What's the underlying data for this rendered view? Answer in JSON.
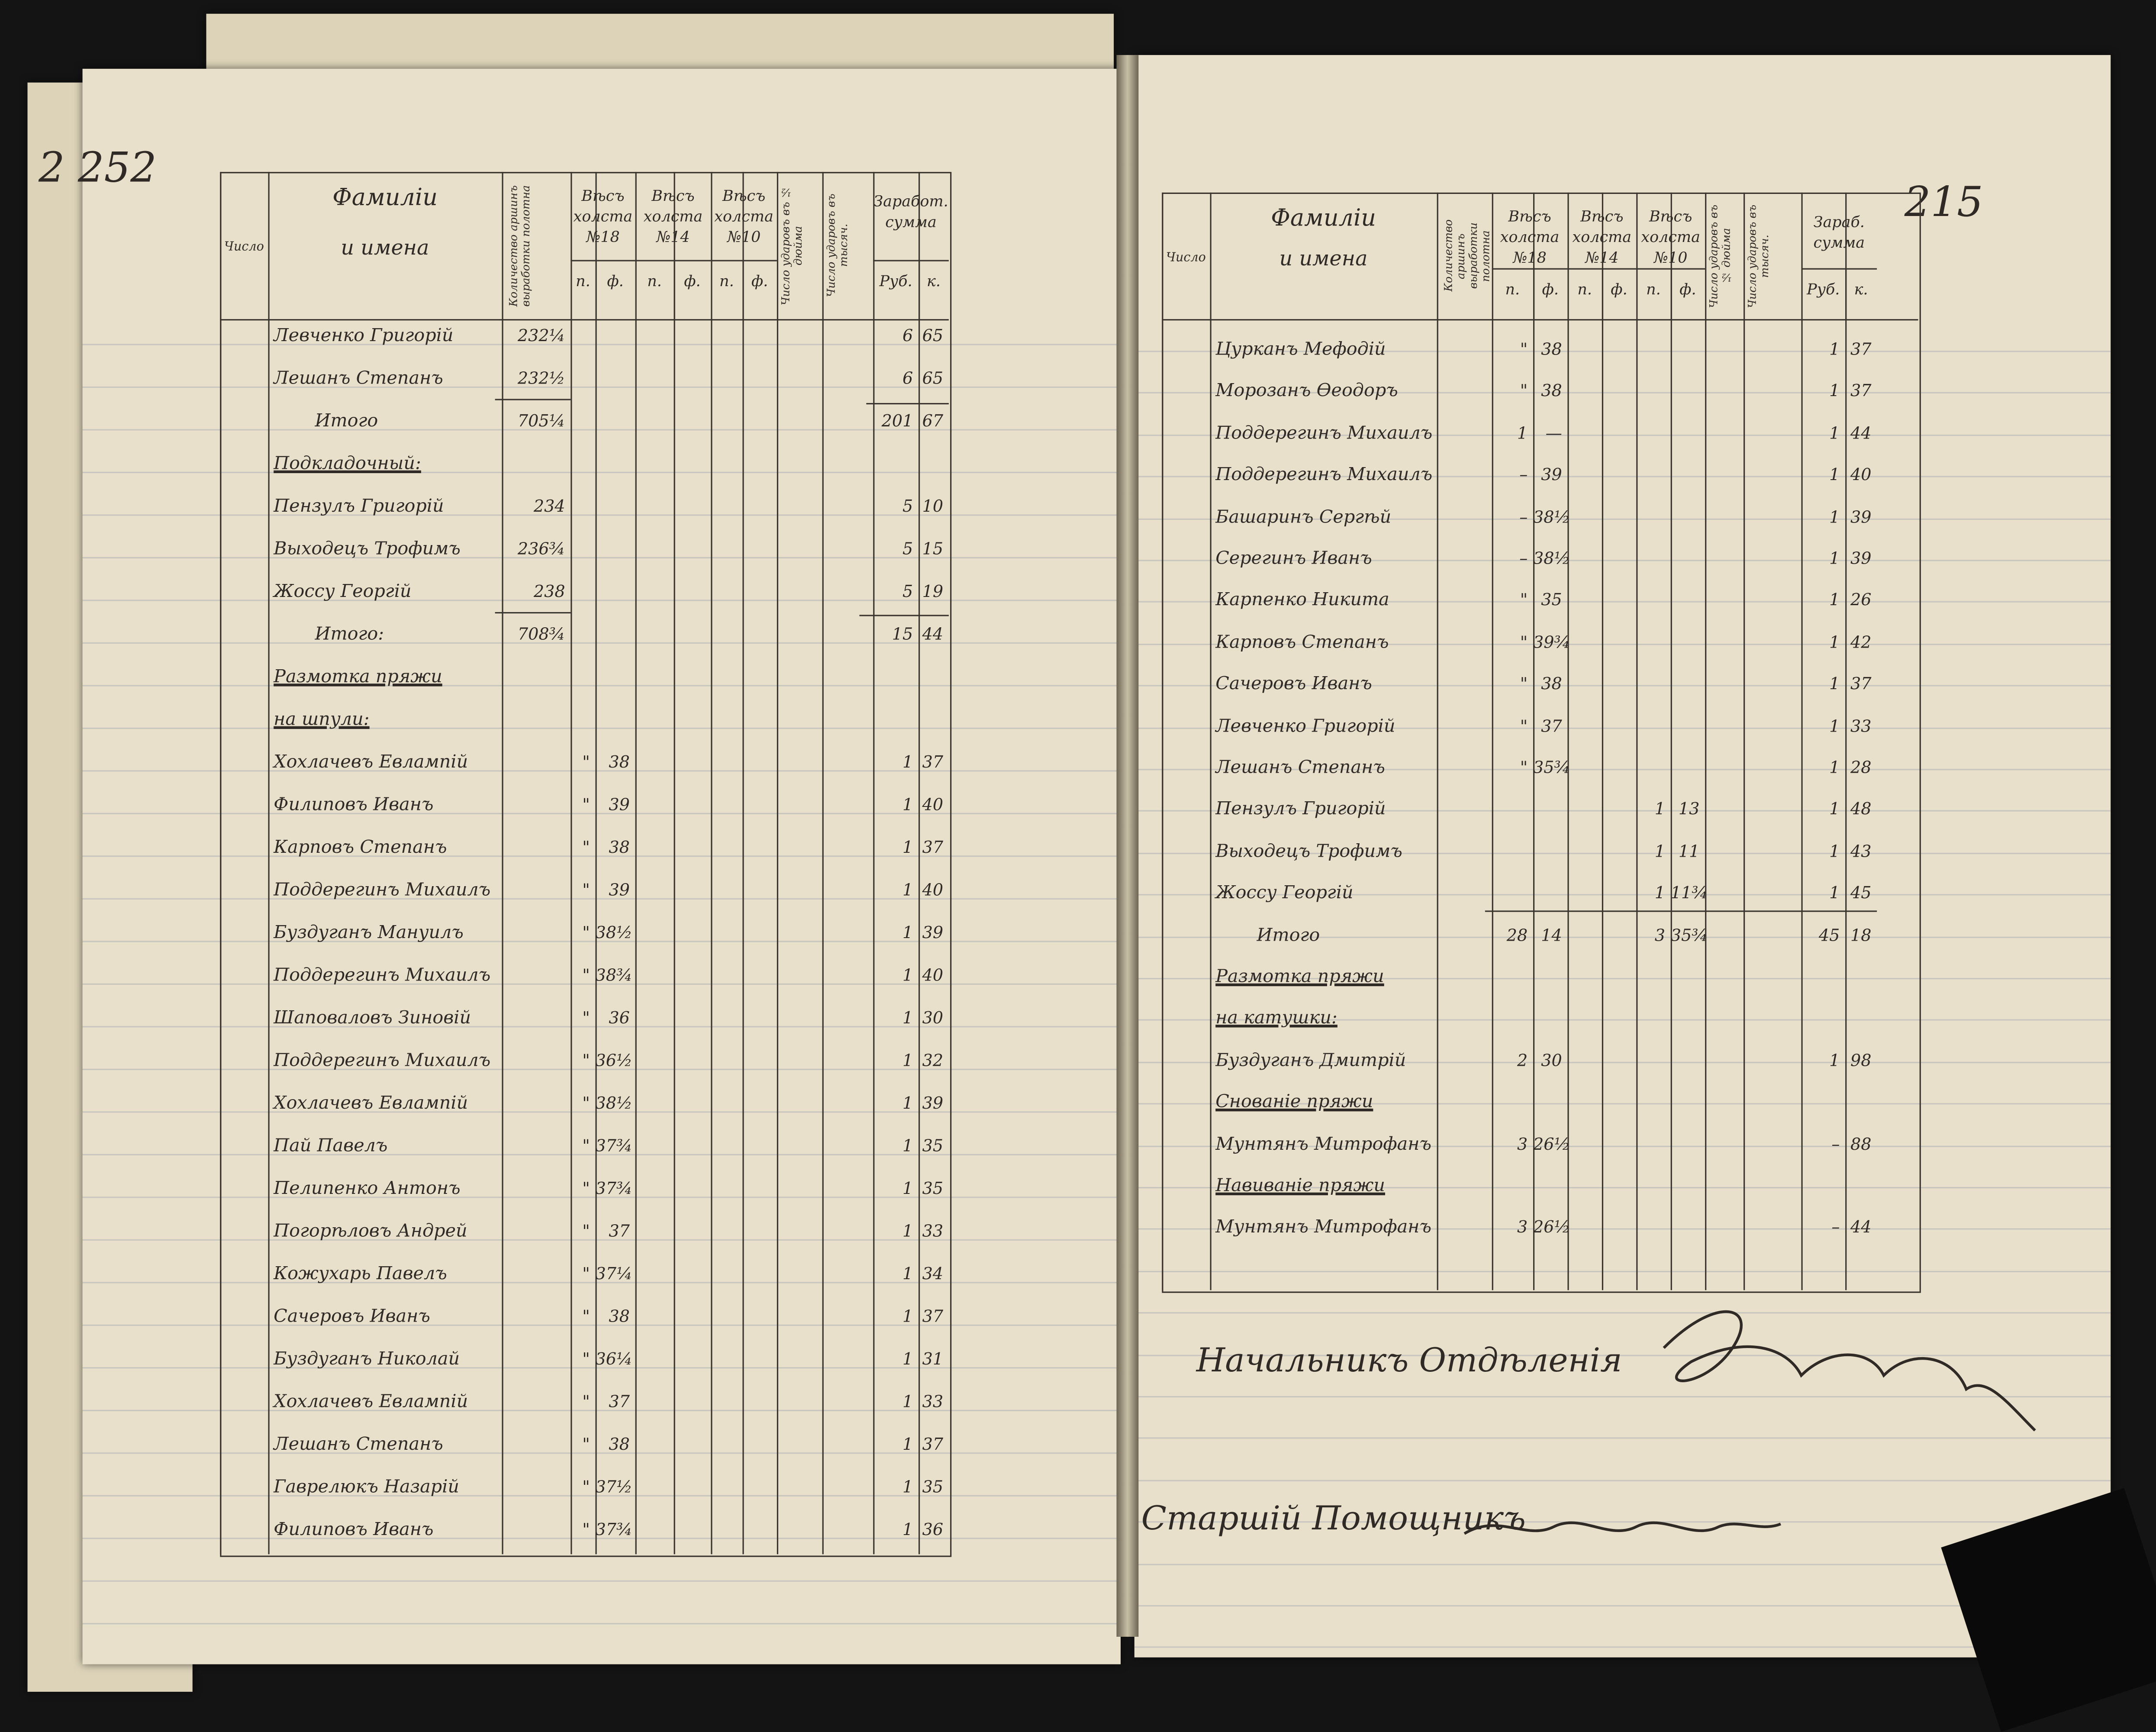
{
  "folio_left": "2 252",
  "folio_right": "215",
  "columns": {
    "number": "Число",
    "name_line1": "Фамилiи",
    "name_line2": "и имена",
    "arshin": "Количество аршинъ выработки полотна",
    "weight18": "Вѣсъ холста №18",
    "weight14": "Вѣсъ холста №14",
    "weight10": "Вѣсъ холста №10",
    "sub_p": "п.",
    "sub_f": "ф.",
    "strikes_half_inch": "Число ударовъ въ ½ дюйма",
    "strikes_thousand": "Число ударовъ въ тысяч.",
    "earnings": "Заработ. сумма",
    "earnings_right": "Зараб. сумма",
    "rub": "Руб.",
    "kop": "к."
  },
  "left_rows": [
    {
      "name": "Левченко Григорiй",
      "arsh": "232¼",
      "rub": "6",
      "kop": "65"
    },
    {
      "name": "Лешанъ Степанъ",
      "arsh": "232½",
      "rub": "6",
      "kop": "65"
    },
    {
      "name": "Итого",
      "arsh": "705¼",
      "rub": "201",
      "kop": "67",
      "kind": "total"
    },
    {
      "name": "Подкладочный:",
      "kind": "heading"
    },
    {
      "name": "Пензулъ Григорiй",
      "arsh": "234",
      "rub": "5",
      "kop": "10"
    },
    {
      "name": "Выходецъ Трофимъ",
      "arsh": "236¾",
      "rub": "5",
      "kop": "15"
    },
    {
      "name": "Жоссу Георгiй",
      "arsh": "238",
      "rub": "5",
      "kop": "19"
    },
    {
      "name": "Итого:",
      "arsh": "708¾",
      "rub": "15",
      "kop": "44",
      "kind": "total"
    },
    {
      "name": "Размотка пряжи",
      "kind": "heading"
    },
    {
      "name": "на шпули:",
      "kind": "heading"
    },
    {
      "name": "Хохлачевъ Евлампiй",
      "p18": "\"",
      "f18": "38",
      "rub": "1",
      "kop": "37"
    },
    {
      "name": "Филиповъ Иванъ",
      "p18": "\"",
      "f18": "39",
      "rub": "1",
      "kop": "40"
    },
    {
      "name": "Карповъ Степанъ",
      "p18": "\"",
      "f18": "38",
      "rub": "1",
      "kop": "37"
    },
    {
      "name": "Поддерегинъ Михаилъ",
      "p18": "\"",
      "f18": "39",
      "rub": "1",
      "kop": "40"
    },
    {
      "name": "Буздуганъ Мануилъ",
      "p18": "\"",
      "f18": "38½",
      "rub": "1",
      "kop": "39"
    },
    {
      "name": "Поддерегинъ Михаилъ",
      "p18": "\"",
      "f18": "38¾",
      "rub": "1",
      "kop": "40"
    },
    {
      "name": "Шаповаловъ Зиновiй",
      "p18": "\"",
      "f18": "36",
      "rub": "1",
      "kop": "30"
    },
    {
      "name": "Поддерегинъ Михаилъ",
      "p18": "\"",
      "f18": "36½",
      "rub": "1",
      "kop": "32"
    },
    {
      "name": "Хохлачевъ Евлампiй",
      "p18": "\"",
      "f18": "38½",
      "rub": "1",
      "kop": "39"
    },
    {
      "name": "Пай Павелъ",
      "p18": "\"",
      "f18": "37¾",
      "rub": "1",
      "kop": "35"
    },
    {
      "name": "Пелипенко Антонъ",
      "p18": "\"",
      "f18": "37¾",
      "rub": "1",
      "kop": "35"
    },
    {
      "name": "Погорѣловъ Андрей",
      "p18": "\"",
      "f18": "37",
      "rub": "1",
      "kop": "33"
    },
    {
      "name": "Кожухарь Павелъ",
      "p18": "\"",
      "f18": "37¼",
      "rub": "1",
      "kop": "34"
    },
    {
      "name": "Сачеровъ Иванъ",
      "p18": "\"",
      "f18": "38",
      "rub": "1",
      "kop": "37"
    },
    {
      "name": "Буздуганъ Николай",
      "p18": "\"",
      "f18": "36¼",
      "rub": "1",
      "kop": "31"
    },
    {
      "name": "Хохлачевъ Евлампiй",
      "p18": "\"",
      "f18": "37",
      "rub": "1",
      "kop": "33"
    },
    {
      "name": "Лешанъ Степанъ",
      "p18": "\"",
      "f18": "38",
      "rub": "1",
      "kop": "37"
    },
    {
      "name": "Гаврелюкъ Назарiй",
      "p18": "\"",
      "f18": "37½",
      "rub": "1",
      "kop": "35"
    },
    {
      "name": "Филиповъ Иванъ",
      "p18": "\"",
      "f18": "37¾",
      "rub": "1",
      "kop": "36"
    }
  ],
  "right_rows": [
    {
      "name": "Цурканъ Мефодiй",
      "p18": "\"",
      "f18": "38",
      "rub": "1",
      "kop": "37"
    },
    {
      "name": "Морозанъ Өеодоръ",
      "p18": "\"",
      "f18": "38",
      "rub": "1",
      "kop": "37"
    },
    {
      "name": "Поддерегинъ Михаилъ",
      "p18": "1",
      "f18": "—",
      "rub": "1",
      "kop": "44"
    },
    {
      "name": "Поддерегинъ Михаилъ",
      "p18": "–",
      "f18": "39",
      "rub": "1",
      "kop": "40"
    },
    {
      "name": "Башаринъ Сергѣй",
      "p18": "–",
      "f18": "38½",
      "rub": "1",
      "kop": "39"
    },
    {
      "name": "Серегинъ Иванъ",
      "p18": "–",
      "f18": "38½",
      "rub": "1",
      "kop": "39"
    },
    {
      "name": "Карпенко Никита",
      "p18": "\"",
      "f18": "35",
      "rub": "1",
      "kop": "26"
    },
    {
      "name": "Карповъ Степанъ",
      "p18": "\"",
      "f18": "39¾",
      "rub": "1",
      "kop": "42"
    },
    {
      "name": "Сачеровъ Иванъ",
      "p18": "\"",
      "f18": "38",
      "rub": "1",
      "kop": "37"
    },
    {
      "name": "Левченко Григорiй",
      "p18": "\"",
      "f18": "37",
      "rub": "1",
      "kop": "33"
    },
    {
      "name": "Лешанъ Степанъ",
      "p18": "\"",
      "f18": "35¾",
      "rub": "1",
      "kop": "28"
    },
    {
      "name": "Пензулъ Григорiй",
      "p10": "1",
      "f10": "13",
      "rub": "1",
      "kop": "48"
    },
    {
      "name": "Выходецъ Трофимъ",
      "p10": "1",
      "f10": "11",
      "rub": "1",
      "kop": "43"
    },
    {
      "name": "Жоссу Георгiй",
      "p10": "1",
      "f10": "11¾",
      "rub": "1",
      "kop": "45"
    },
    {
      "name": "Итого",
      "p18": "28",
      "f18": "14",
      "p10": "3",
      "f10": "35¾",
      "rub": "45",
      "kop": "18",
      "kind": "total"
    },
    {
      "name": "Размотка пряжи",
      "kind": "heading"
    },
    {
      "name": "на катушки:",
      "kind": "heading"
    },
    {
      "name": "Буздуганъ Дмитрiй",
      "p18": "2",
      "f18": "30",
      "rub": "1",
      "kop": "98"
    },
    {
      "name": "Снованiе пряжи",
      "kind": "heading"
    },
    {
      "name": "Мунтянъ Митрофанъ",
      "p18": "3",
      "f18": "26½",
      "rub": "–",
      "kop": "88"
    },
    {
      "name": "Навиванiе пряжи",
      "kind": "heading"
    },
    {
      "name": "Мунтянъ Митрофанъ",
      "p18": "3",
      "f18": "26½",
      "rub": "–",
      "kop": "44"
    }
  ],
  "signatures": {
    "chief": "Начальникъ Отдѣленія",
    "assistant": "Старшiй Помощникъ"
  }
}
